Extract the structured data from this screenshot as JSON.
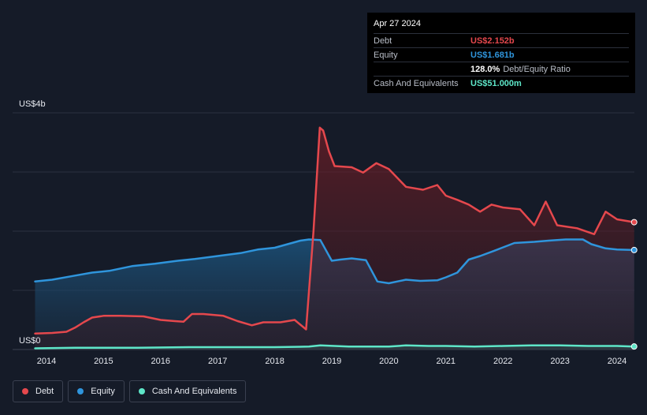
{
  "chart_data": {
    "type": "area",
    "y_unit_label": "US$4b",
    "y_zero_label": "US$0",
    "ylim": [
      0,
      4
    ],
    "xlim": [
      2013.4,
      2024.5
    ],
    "x_ticks": [
      "2014",
      "2015",
      "2016",
      "2017",
      "2018",
      "2019",
      "2020",
      "2021",
      "2022",
      "2023",
      "2024"
    ],
    "gridlines": true,
    "series": [
      {
        "name": "Debt",
        "color": "#e5484d",
        "points": [
          [
            2013.8,
            0.27
          ],
          [
            2014.1,
            0.28
          ],
          [
            2014.35,
            0.3
          ],
          [
            2014.5,
            0.37
          ],
          [
            2014.65,
            0.46
          ],
          [
            2014.8,
            0.54
          ],
          [
            2015.0,
            0.57
          ],
          [
            2015.3,
            0.57
          ],
          [
            2015.7,
            0.56
          ],
          [
            2016.0,
            0.5
          ],
          [
            2016.25,
            0.48
          ],
          [
            2016.4,
            0.47
          ],
          [
            2016.55,
            0.6
          ],
          [
            2016.75,
            0.6
          ],
          [
            2017.1,
            0.57
          ],
          [
            2017.35,
            0.48
          ],
          [
            2017.6,
            0.41
          ],
          [
            2017.8,
            0.46
          ],
          [
            2018.1,
            0.46
          ],
          [
            2018.35,
            0.5
          ],
          [
            2018.55,
            0.34
          ],
          [
            2018.68,
            2.0
          ],
          [
            2018.79,
            3.75
          ],
          [
            2018.85,
            3.7
          ],
          [
            2018.95,
            3.35
          ],
          [
            2019.05,
            3.1
          ],
          [
            2019.35,
            3.08
          ],
          [
            2019.55,
            2.99
          ],
          [
            2019.78,
            3.15
          ],
          [
            2020.0,
            3.05
          ],
          [
            2020.3,
            2.75
          ],
          [
            2020.6,
            2.7
          ],
          [
            2020.85,
            2.78
          ],
          [
            2021.0,
            2.6
          ],
          [
            2021.2,
            2.53
          ],
          [
            2021.4,
            2.45
          ],
          [
            2021.6,
            2.33
          ],
          [
            2021.8,
            2.45
          ],
          [
            2022.0,
            2.4
          ],
          [
            2022.3,
            2.37
          ],
          [
            2022.55,
            2.1
          ],
          [
            2022.75,
            2.5
          ],
          [
            2022.95,
            2.1
          ],
          [
            2023.3,
            2.05
          ],
          [
            2023.6,
            1.95
          ],
          [
            2023.8,
            2.33
          ],
          [
            2024.0,
            2.2
          ],
          [
            2024.3,
            2.152
          ]
        ]
      },
      {
        "name": "Equity",
        "color": "#2f95dc",
        "points": [
          [
            2013.8,
            1.15
          ],
          [
            2014.1,
            1.18
          ],
          [
            2014.5,
            1.25
          ],
          [
            2014.8,
            1.3
          ],
          [
            2015.1,
            1.33
          ],
          [
            2015.5,
            1.41
          ],
          [
            2015.9,
            1.45
          ],
          [
            2016.3,
            1.5
          ],
          [
            2016.6,
            1.53
          ],
          [
            2017.0,
            1.58
          ],
          [
            2017.4,
            1.63
          ],
          [
            2017.7,
            1.69
          ],
          [
            2018.0,
            1.72
          ],
          [
            2018.3,
            1.8
          ],
          [
            2018.45,
            1.84
          ],
          [
            2018.6,
            1.86
          ],
          [
            2018.8,
            1.85
          ],
          [
            2019.0,
            1.5
          ],
          [
            2019.15,
            1.52
          ],
          [
            2019.35,
            1.54
          ],
          [
            2019.6,
            1.51
          ],
          [
            2019.8,
            1.15
          ],
          [
            2020.0,
            1.12
          ],
          [
            2020.3,
            1.18
          ],
          [
            2020.55,
            1.16
          ],
          [
            2020.85,
            1.17
          ],
          [
            2021.0,
            1.22
          ],
          [
            2021.2,
            1.3
          ],
          [
            2021.4,
            1.52
          ],
          [
            2021.6,
            1.58
          ],
          [
            2021.85,
            1.67
          ],
          [
            2022.2,
            1.8
          ],
          [
            2022.55,
            1.82
          ],
          [
            2022.8,
            1.84
          ],
          [
            2023.1,
            1.86
          ],
          [
            2023.4,
            1.86
          ],
          [
            2023.55,
            1.78
          ],
          [
            2023.8,
            1.71
          ],
          [
            2024.0,
            1.69
          ],
          [
            2024.3,
            1.681
          ]
        ]
      },
      {
        "name": "Cash And Equivalents",
        "color": "#5ee6c8",
        "points": [
          [
            2013.8,
            0.02
          ],
          [
            2014.5,
            0.03
          ],
          [
            2015.1,
            0.03
          ],
          [
            2015.6,
            0.03
          ],
          [
            2016.5,
            0.04
          ],
          [
            2017.0,
            0.04
          ],
          [
            2017.5,
            0.04
          ],
          [
            2018.0,
            0.04
          ],
          [
            2018.6,
            0.05
          ],
          [
            2018.8,
            0.07
          ],
          [
            2019.3,
            0.05
          ],
          [
            2020.0,
            0.05
          ],
          [
            2020.3,
            0.07
          ],
          [
            2020.7,
            0.06
          ],
          [
            2021.0,
            0.06
          ],
          [
            2021.5,
            0.05
          ],
          [
            2022.0,
            0.06
          ],
          [
            2022.5,
            0.07
          ],
          [
            2023.0,
            0.07
          ],
          [
            2023.5,
            0.06
          ],
          [
            2024.0,
            0.06
          ],
          [
            2024.3,
            0.051
          ]
        ]
      }
    ]
  },
  "tooltip": {
    "date": "Apr 27 2024",
    "rows": [
      {
        "label": "Debt",
        "value": "US$2.152b",
        "color": "#e5484d",
        "extra": ""
      },
      {
        "label": "Equity",
        "value": "US$1.681b",
        "color": "#2f95dc",
        "extra": ""
      },
      {
        "label": "",
        "value": "128.0%",
        "color": "#ffffff",
        "extra": "Debt/Equity Ratio"
      },
      {
        "label": "Cash And Equivalents",
        "value": "US$51.000m",
        "color": "#5ee6c8",
        "extra": ""
      }
    ]
  },
  "legend": [
    {
      "label": "Debt",
      "color": "#e5484d"
    },
    {
      "label": "Equity",
      "color": "#2f95dc"
    },
    {
      "label": "Cash And Equivalents",
      "color": "#5ee6c8"
    }
  ]
}
